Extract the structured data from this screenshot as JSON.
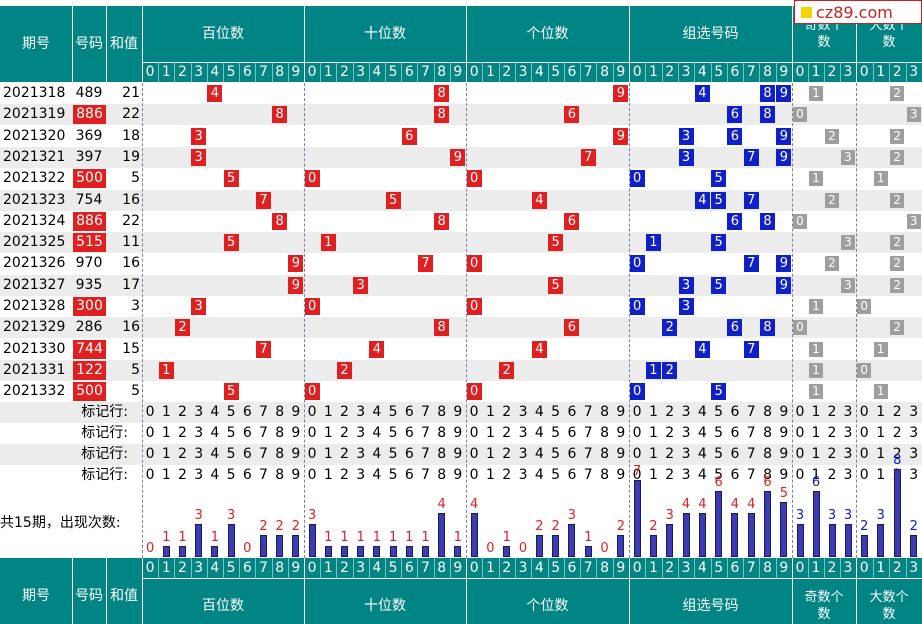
{
  "logo": {
    "text": "cz89.com"
  },
  "header": {
    "issue_label": "期号",
    "number_label": "号码",
    "sum_label": "和值",
    "hundreds_label": "百位数",
    "tens_label": "十位数",
    "units_label": "个位数",
    "group_label": "组选号码",
    "odd_label": "奇数个数",
    "big_label": "大数个数",
    "digits10": [
      "0",
      "1",
      "2",
      "3",
      "4",
      "5",
      "6",
      "7",
      "8",
      "9"
    ],
    "digits4": [
      "0",
      "1",
      "2",
      "3"
    ]
  },
  "rows": [
    {
      "issue": "2021318",
      "number": "489",
      "sum": "21",
      "highlight": false,
      "h": "4",
      "t": "8",
      "u": "9",
      "group": [
        "4",
        "8",
        "9"
      ],
      "odd": "1",
      "big": "2"
    },
    {
      "issue": "2021319",
      "number": "886",
      "sum": "22",
      "highlight": true,
      "h": "8",
      "t": "8",
      "u": "6",
      "group": [
        "6",
        "8"
      ],
      "odd": "0",
      "big": "3"
    },
    {
      "issue": "2021320",
      "number": "369",
      "sum": "18",
      "highlight": false,
      "h": "3",
      "t": "6",
      "u": "9",
      "group": [
        "3",
        "6",
        "9"
      ],
      "odd": "2",
      "big": "2"
    },
    {
      "issue": "2021321",
      "number": "397",
      "sum": "19",
      "highlight": false,
      "h": "3",
      "t": "9",
      "u": "7",
      "group": [
        "3",
        "7",
        "9"
      ],
      "odd": "3",
      "big": "2"
    },
    {
      "issue": "2021322",
      "number": "500",
      "sum": "5",
      "highlight": true,
      "h": "5",
      "t": "0",
      "u": "0",
      "group": [
        "0",
        "5"
      ],
      "odd": "1",
      "big": "1"
    },
    {
      "issue": "2021323",
      "number": "754",
      "sum": "16",
      "highlight": false,
      "h": "7",
      "t": "5",
      "u": "4",
      "group": [
        "4",
        "5",
        "7"
      ],
      "odd": "2",
      "big": "2"
    },
    {
      "issue": "2021324",
      "number": "886",
      "sum": "22",
      "highlight": true,
      "h": "8",
      "t": "8",
      "u": "6",
      "group": [
        "6",
        "8"
      ],
      "odd": "0",
      "big": "3"
    },
    {
      "issue": "2021325",
      "number": "515",
      "sum": "11",
      "highlight": true,
      "h": "5",
      "t": "1",
      "u": "5",
      "group": [
        "1",
        "5"
      ],
      "odd": "3",
      "big": "2"
    },
    {
      "issue": "2021326",
      "number": "970",
      "sum": "16",
      "highlight": false,
      "h": "9",
      "t": "7",
      "u": "0",
      "group": [
        "0",
        "7",
        "9"
      ],
      "odd": "2",
      "big": "2"
    },
    {
      "issue": "2021327",
      "number": "935",
      "sum": "17",
      "highlight": false,
      "h": "9",
      "t": "3",
      "u": "5",
      "group": [
        "3",
        "5",
        "9"
      ],
      "odd": "3",
      "big": "2"
    },
    {
      "issue": "2021328",
      "number": "300",
      "sum": "3",
      "highlight": true,
      "h": "3",
      "t": "0",
      "u": "0",
      "group": [
        "0",
        "3"
      ],
      "odd": "1",
      "big": "0"
    },
    {
      "issue": "2021329",
      "number": "286",
      "sum": "16",
      "highlight": false,
      "h": "2",
      "t": "8",
      "u": "6",
      "group": [
        "2",
        "6",
        "8"
      ],
      "odd": "0",
      "big": "2"
    },
    {
      "issue": "2021330",
      "number": "744",
      "sum": "15",
      "highlight": true,
      "h": "7",
      "t": "4",
      "u": "4",
      "group": [
        "4",
        "7"
      ],
      "odd": "1",
      "big": "1"
    },
    {
      "issue": "2021331",
      "number": "122",
      "sum": "5",
      "highlight": true,
      "h": "1",
      "t": "2",
      "u": "2",
      "group": [
        "1",
        "2"
      ],
      "odd": "1",
      "big": "0"
    },
    {
      "issue": "2021332",
      "number": "500",
      "sum": "5",
      "highlight": true,
      "h": "5",
      "t": "0",
      "u": "0",
      "group": [
        "0",
        "5"
      ],
      "odd": "1",
      "big": "1"
    }
  ],
  "marker_label": "标记行:",
  "marker_rows": 4,
  "summary_label": "共15期，出现次数:",
  "counts": {
    "hundreds": [
      0,
      1,
      1,
      3,
      1,
      3,
      0,
      2,
      2,
      2
    ],
    "tens": [
      3,
      1,
      1,
      1,
      1,
      1,
      1,
      1,
      4,
      1
    ],
    "units": [
      4,
      0,
      1,
      0,
      2,
      2,
      3,
      1,
      0,
      2
    ],
    "group": [
      7,
      2,
      3,
      4,
      4,
      6,
      4,
      4,
      6,
      5
    ],
    "odd": [
      3,
      6,
      3,
      3
    ],
    "big": [
      2,
      3,
      8,
      2
    ]
  },
  "colors": {
    "teal": "#008484",
    "red": "#e02020",
    "blue": "#1020c8",
    "stripe": "#ececec"
  }
}
